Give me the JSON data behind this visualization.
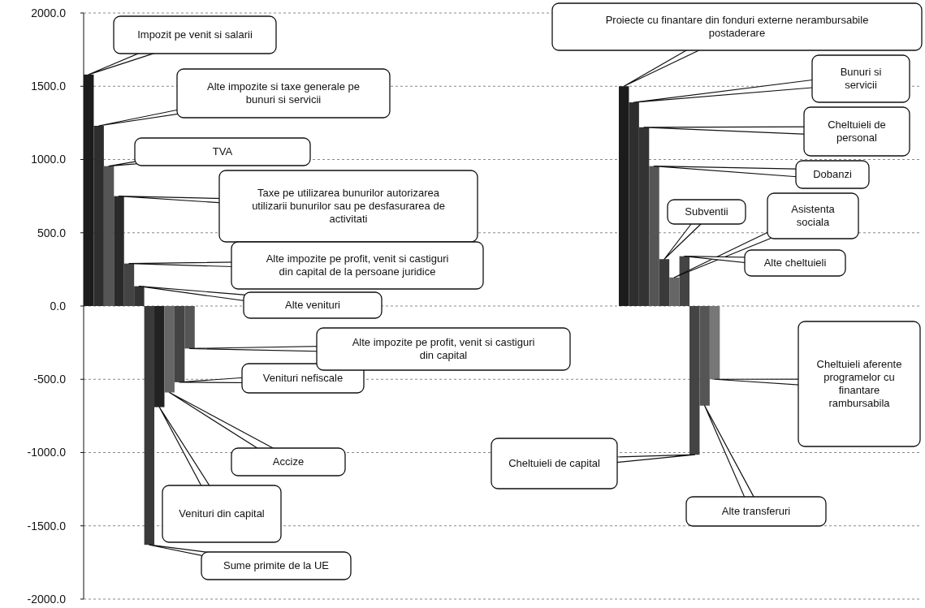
{
  "chart_data": {
    "type": "bar",
    "categories": [
      null,
      null,
      null,
      null,
      null,
      null,
      null,
      null,
      null,
      null,
      null,
      null,
      null,
      null,
      null,
      null,
      null,
      null,
      null,
      null,
      null,
      null,
      null,
      null,
      null,
      null,
      null,
      null,
      null,
      null,
      null,
      null,
      null,
      null,
      null,
      null,
      null,
      null,
      null,
      null,
      null,
      null,
      null,
      null,
      null,
      null,
      null,
      null,
      null,
      null,
      null,
      null,
      null,
      null,
      null,
      null,
      null,
      null,
      null,
      null,
      null,
      null,
      null,
      null,
      null,
      null,
      null,
      null,
      null,
      null,
      null,
      null,
      null,
      null,
      null,
      null,
      null,
      null,
      null,
      null,
      null,
      null,
      null
    ],
    "values": [
      1580,
      1230,
      955,
      750,
      290,
      135,
      -1630,
      -690,
      -590,
      -520,
      -290,
      null,
      null,
      null,
      null,
      null,
      null,
      null,
      null,
      null,
      null,
      null,
      null,
      null,
      null,
      null,
      null,
      null,
      null,
      null,
      null,
      null,
      null,
      null,
      null,
      null,
      null,
      null,
      null,
      null,
      null,
      null,
      null,
      null,
      null,
      null,
      null,
      null,
      null,
      null,
      null,
      null,
      null,
      1500,
      1390,
      1220,
      955,
      320,
      195,
      340,
      -1015,
      -680,
      -500,
      null,
      null,
      null,
      null,
      null,
      null,
      null,
      null,
      null,
      null,
      null,
      null,
      null,
      null,
      null,
      null,
      null,
      null,
      null,
      null
    ],
    "colors": [
      "#1c1c1c",
      "#2e2e2e",
      "#555555",
      "#2a2a2a",
      "#444444",
      "#333333",
      "#3a3a3a",
      "#222222",
      "#666666",
      "#444444",
      "#555555",
      null,
      null,
      null,
      null,
      null,
      null,
      null,
      null,
      null,
      null,
      null,
      null,
      null,
      null,
      null,
      null,
      null,
      null,
      null,
      null,
      null,
      null,
      null,
      null,
      null,
      null,
      null,
      null,
      null,
      null,
      null,
      null,
      null,
      null,
      null,
      null,
      null,
      null,
      null,
      null,
      null,
      null,
      "#1c1c1c",
      "#2e2e2e",
      "#333333",
      "#555555",
      "#3a3a3a",
      "#666666",
      "#444444",
      "#444444",
      "#555555",
      "#777777",
      null,
      null,
      null,
      null,
      null,
      null,
      null,
      null,
      null,
      null,
      null,
      null,
      null,
      null,
      null,
      null,
      null,
      null,
      null,
      null
    ],
    "annotations": [
      "Impozit pe venit si salarii",
      "Alte impozite si taxe generale pe bunuri si servicii",
      "TVA",
      "Taxe pe utilizarea bunurilor autorizarea utilizarii bunurilor sau pe desfasurarea de activitati",
      "Alte impozite pe profit, venit si castiguri din capital de la persoane juridice",
      "Alte venituri",
      "Sume primite de la UE",
      "Venituri din capital",
      "Accize",
      "Venituri nefiscale",
      "Alte impozite pe profit, venit si castiguri din capital",
      "Proiecte cu finantare din fonduri externe nerambursabile postaderare",
      "Bunuri si servicii",
      "Cheltuieli de personal",
      "Dobanzi",
      "Subventii",
      "Asistenta sociala",
      "Alte cheltuieli",
      "Cheltuieli de capital",
      "Alte transferuri",
      "Cheltuieli aferente programelor cu finantare rambursabila"
    ],
    "ylim": [
      -2000,
      2000
    ],
    "yticks": [
      {
        "value": -2000,
        "label": "-2000.0"
      },
      {
        "value": -1500,
        "label": "-1500.0"
      },
      {
        "value": -1000,
        "label": "-1000.0"
      },
      {
        "value": -500,
        "label": "-500.0"
      },
      {
        "value": 0,
        "label": "0.0"
      },
      {
        "value": 500,
        "label": "500.0"
      },
      {
        "value": 1000,
        "label": "1000.0"
      },
      {
        "value": 1500,
        "label": "1500.0"
      },
      {
        "value": 2000,
        "label": "2000.0"
      }
    ],
    "grid": "y"
  }
}
